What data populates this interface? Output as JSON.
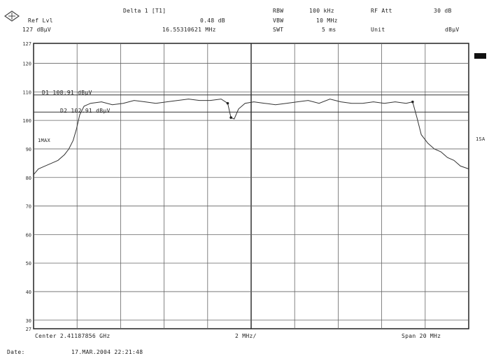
{
  "header": {
    "ref_lvl_label": "Ref Lvl",
    "ref_lvl_value": "127 dBµV",
    "delta_label": "Delta 1 [T1]",
    "delta_db": "0.48 dB",
    "delta_freq": "16.55310621 MHz",
    "rbw_label": "RBW",
    "rbw_value": "100 kHz",
    "vbw_label": "VBW",
    "vbw_value": "10 MHz",
    "swt_label": "SWT",
    "swt_value": "5 ms",
    "rf_att_label": "RF Att",
    "rf_att_value": "30 dB",
    "unit_label": "Unit",
    "unit_value": "dBµV"
  },
  "side": {
    "detector_label": "1MAX",
    "right_label": "1SA"
  },
  "lines": {
    "d1_label": "D1 108.91 dBµV",
    "d2_label": "D2 102.91 dBµV"
  },
  "footer": {
    "center_label": "Center 2.41187856 GHz",
    "div_label": "2 MHz/",
    "span_label": "Span 20 MHz",
    "date_label": "Date:",
    "date_value": "17.MAR.2004  22:21:48"
  },
  "chart_data": {
    "type": "line",
    "title": "",
    "xlabel": "",
    "ylabel": "",
    "xlim": [
      2401.87856,
      2421.87856
    ],
    "ylim": [
      27,
      127
    ],
    "y_ticks": [
      "127",
      "120",
      "110",
      "100",
      "90",
      "80",
      "70",
      "60",
      "50",
      "40",
      "30",
      "27"
    ],
    "y_tick_values": [
      127,
      120,
      110,
      100,
      90,
      80,
      70,
      60,
      50,
      40,
      30,
      27
    ],
    "grid": true,
    "reference_lines": [
      {
        "name": "D1",
        "value": 108.91
      },
      {
        "name": "D2",
        "value": 102.91
      }
    ],
    "series": [
      {
        "x": [
          2401.88,
          2402.1,
          2402.4,
          2402.7,
          2403.0,
          2403.3,
          2403.5,
          2403.7,
          2403.85,
          2404.0,
          2404.2,
          2404.5,
          2405.0,
          2405.5,
          2406.0,
          2406.5,
          2407.0,
          2407.5,
          2408.0,
          2408.5,
          2409.0,
          2409.5,
          2410.0,
          2410.5,
          2410.8,
          2410.95,
          2411.1,
          2411.3,
          2411.6,
          2412.0,
          2412.5,
          2413.0,
          2413.5,
          2414.0,
          2414.5,
          2415.0,
          2415.5,
          2416.0,
          2416.5,
          2417.0,
          2417.5,
          2418.0,
          2418.5,
          2419.0,
          2419.3,
          2419.5,
          2419.7,
          2420.0,
          2420.3,
          2420.6,
          2420.9,
          2421.2,
          2421.5,
          2421.88
        ],
        "values": [
          81,
          83,
          84,
          85,
          86,
          88,
          90,
          93,
          97,
          102,
          105,
          106,
          106.5,
          105.5,
          106,
          107,
          106.5,
          106,
          106.5,
          107,
          107.5,
          107,
          107,
          107.5,
          106,
          101,
          100.5,
          104,
          106,
          106.5,
          106,
          105.5,
          106,
          106.5,
          107,
          106,
          107.5,
          106.5,
          106,
          106,
          106.5,
          106,
          106.5,
          106,
          106.5,
          101,
          95,
          92,
          90,
          89,
          87,
          86,
          84,
          83
        ]
      }
    ]
  }
}
